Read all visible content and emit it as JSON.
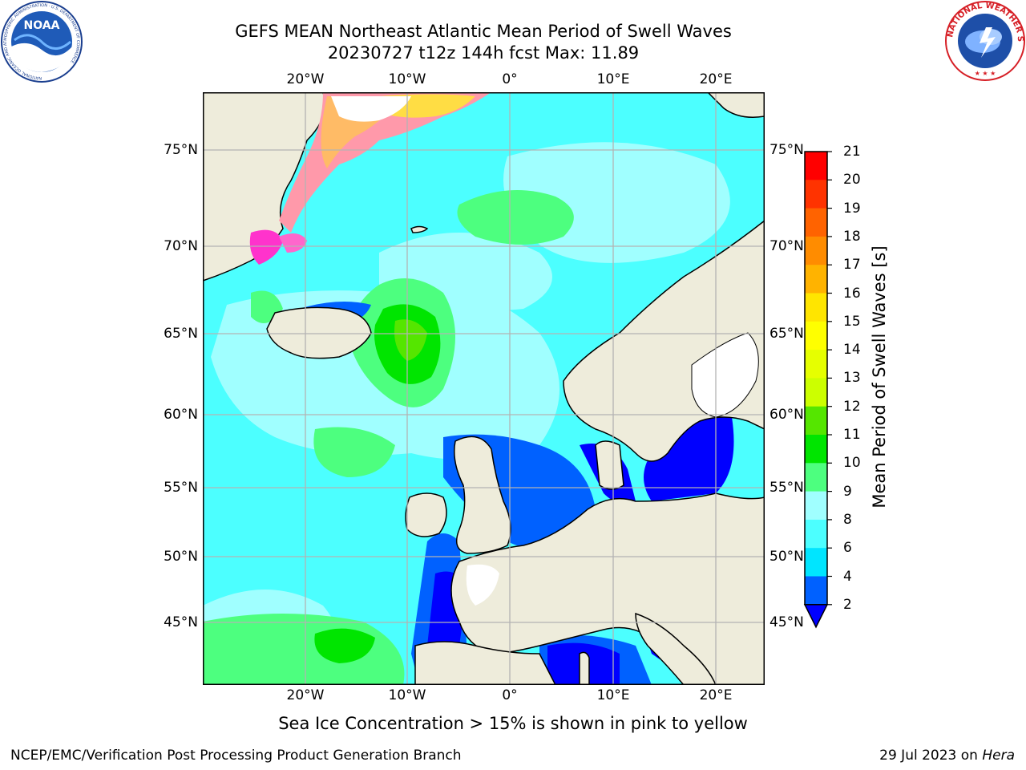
{
  "header": {
    "title_line1": "GEFS MEAN Northeast Atlantic Mean Period of Swell Waves",
    "title_line2": "20230727 t12z 144h fcst   Max: 11.89"
  },
  "logos": {
    "left": {
      "name": "noaa-logo",
      "text": "NOAA",
      "ring_text": "NATIONAL OCEANIC AND ATMOSPHERIC ADMINISTRATION · U.S. DEPARTMENT OF COMMERCE"
    },
    "right": {
      "name": "nws-logo",
      "ring_text": "NATIONAL WEATHER SERVICE"
    }
  },
  "map": {
    "lon_ticks": [
      "20°W",
      "10°W",
      "0°",
      "10°E",
      "20°E"
    ],
    "lat_ticks": [
      "75°N",
      "70°N",
      "65°N",
      "60°N",
      "55°N",
      "50°N",
      "45°N"
    ],
    "colors": {
      "land": "#eeecdb",
      "grid": "#b3b3b3",
      "coast": "#000000",
      "no_data": "#ffffff"
    }
  },
  "colorbar": {
    "label": "Mean Period of Swell Waves [s]",
    "ticks": [
      "21",
      "20",
      "19",
      "18",
      "17",
      "16",
      "15",
      "14",
      "13",
      "12",
      "11",
      "10",
      "9",
      "8",
      "6",
      "4",
      "2"
    ],
    "levels": [
      {
        "range": "2-4",
        "color": "#0061ff"
      },
      {
        "range": "4-6",
        "color": "#00e5ff"
      },
      {
        "range": "6-8",
        "color": "#4cffff"
      },
      {
        "range": "8-9",
        "color": "#a0ffff"
      },
      {
        "range": "9-10",
        "color": "#4dff7f"
      },
      {
        "range": "10-11",
        "color": "#00e500"
      },
      {
        "range": "11-12",
        "color": "#55e600"
      },
      {
        "range": "12-13",
        "color": "#ccff00"
      },
      {
        "range": "13-14",
        "color": "#e6ff00"
      },
      {
        "range": "14-15",
        "color": "#ffff00"
      },
      {
        "range": "15-16",
        "color": "#ffe500"
      },
      {
        "range": "16-17",
        "color": "#ffb300"
      },
      {
        "range": "17-18",
        "color": "#ff8c00"
      },
      {
        "range": "18-19",
        "color": "#ff6300"
      },
      {
        "range": "19-20",
        "color": "#ff3300"
      },
      {
        "range": "20-21",
        "color": "#ff0000"
      }
    ],
    "under_color": "#0000ff"
  },
  "sea_ice": {
    "colors": [
      "#ff33cc",
      "#ff66cc",
      "#ff99aa",
      "#ffbb66",
      "#ffdd44"
    ]
  },
  "caption": "Sea Ice Concentration > 15% is shown in pink to yellow",
  "footer": {
    "left": "NCEP/EMC/Verification Post Processing Product Generation Branch",
    "right_prefix": "29 Jul 2023 on ",
    "right_host": "Hera"
  }
}
